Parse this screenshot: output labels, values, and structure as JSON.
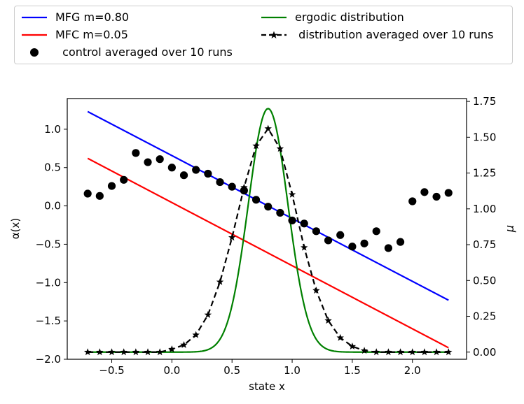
{
  "chart_data": {
    "type": "line",
    "xlabel": "state x",
    "ylabel_left": "α(x)",
    "ylabel_right": "μ",
    "xlim": [
      -0.87,
      2.45
    ],
    "ylim_left": [
      -2.0,
      1.4
    ],
    "ylim_right": [
      -0.05,
      1.77
    ],
    "xticks": [
      -0.5,
      0.0,
      0.5,
      1.0,
      1.5,
      2.0
    ],
    "xtick_labels": [
      "−0.5",
      "0.0",
      "0.5",
      "1.0",
      "1.5",
      "2.0"
    ],
    "yticks_left": [
      1.0,
      0.5,
      0.0,
      -0.5,
      -1.0,
      -1.5,
      -2.0
    ],
    "yticks_left_labels": [
      "1.0",
      "0.5",
      "0.0",
      "−0.5",
      "−1.0",
      "−1.5",
      "−2.0"
    ],
    "yticks_right": [
      1.75,
      1.5,
      1.25,
      1.0,
      0.75,
      0.5,
      0.25,
      0.0
    ],
    "yticks_right_labels": [
      "1.75",
      "1.50",
      "1.25",
      "1.00",
      "0.75",
      "0.50",
      "0.25",
      "0.00"
    ],
    "legend": [
      {
        "label": "MFG m=0.80",
        "color": "#0000ff",
        "style": "line"
      },
      {
        "label": "ergodic distribution",
        "color": "#008000",
        "style": "line"
      },
      {
        "label": "MFC m=0.05",
        "color": "#ff0000",
        "style": "line"
      },
      {
        "label": " distribution averaged over 10 runs",
        "color": "#000000",
        "style": "dashed-star"
      },
      {
        "label": "  control averaged over 10 runs",
        "color": "#000000",
        "style": "dot"
      }
    ],
    "series": [
      {
        "name": "MFG m=0.80",
        "axis": "left",
        "type": "line",
        "color": "#0000ff",
        "x": [
          -0.7,
          2.3
        ],
        "y": [
          1.23,
          -1.23
        ]
      },
      {
        "name": "MFC m=0.05",
        "axis": "left",
        "type": "line",
        "color": "#ff0000",
        "x": [
          -0.7,
          2.3
        ],
        "y": [
          0.62,
          -1.85
        ]
      },
      {
        "name": "control averaged over 10 runs",
        "axis": "left",
        "type": "scatter",
        "color": "#000000",
        "x": [
          -0.7,
          -0.6,
          -0.5,
          -0.4,
          -0.3,
          -0.2,
          -0.1,
          0.0,
          0.1,
          0.2,
          0.3,
          0.4,
          0.5,
          0.6,
          0.7,
          0.8,
          0.9,
          1.0,
          1.1,
          1.2,
          1.3,
          1.4,
          1.5,
          1.6,
          1.7,
          1.8,
          1.9,
          2.0,
          2.1,
          2.2,
          2.3
        ],
        "y": [
          0.16,
          0.13,
          0.26,
          0.34,
          0.69,
          0.57,
          0.61,
          0.5,
          0.4,
          0.47,
          0.42,
          0.31,
          0.25,
          0.2,
          0.08,
          -0.01,
          -0.09,
          -0.19,
          -0.23,
          -0.33,
          -0.45,
          -0.38,
          -0.53,
          -0.49,
          -0.33,
          -0.55,
          -0.47,
          0.06,
          0.18,
          0.12,
          0.17
        ]
      },
      {
        "name": "ergodic distribution",
        "axis": "right",
        "type": "line",
        "color": "#008000",
        "gaussian": {
          "amplitude": 1.7,
          "mean": 0.8,
          "std": 0.165,
          "xmin": -0.7,
          "xmax": 2.3
        }
      },
      {
        "name": "distribution averaged over 10 runs",
        "axis": "right",
        "type": "dashed-star",
        "color": "#000000",
        "x": [
          -0.7,
          -0.6,
          -0.5,
          -0.4,
          -0.3,
          -0.2,
          -0.1,
          0.0,
          0.1,
          0.2,
          0.3,
          0.4,
          0.5,
          0.6,
          0.7,
          0.8,
          0.9,
          1.0,
          1.1,
          1.2,
          1.3,
          1.4,
          1.5,
          1.6,
          1.7,
          1.8,
          1.9,
          2.0,
          2.1,
          2.2,
          2.3
        ],
        "y": [
          0.0,
          0.0,
          0.0,
          0.0,
          0.0,
          0.0,
          0.0,
          0.02,
          0.05,
          0.12,
          0.26,
          0.49,
          0.8,
          1.15,
          1.44,
          1.56,
          1.42,
          1.1,
          0.73,
          0.43,
          0.22,
          0.1,
          0.04,
          0.01,
          0.0,
          0.0,
          0.0,
          0.0,
          0.0,
          0.0,
          0.0
        ]
      }
    ]
  }
}
